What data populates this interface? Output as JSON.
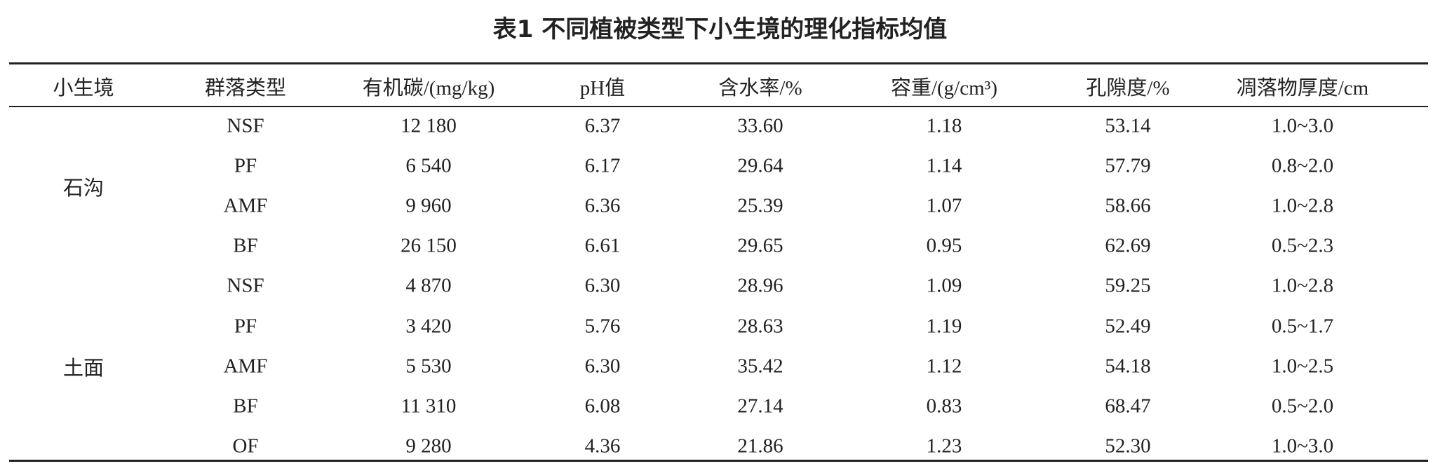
{
  "title": "表1 不同植被类型下小生境的理化指标均值",
  "table": {
    "headers": [
      "小生境",
      "群落类型",
      "有机碳/(mg/kg)",
      "pH值",
      "含水率/%",
      "容重/(g/cm³)",
      "孔隙度/%",
      "凋落物厚度/cm"
    ],
    "groups": [
      {
        "label": "石沟",
        "rows": [
          [
            "NSF",
            "12 180",
            "6.37",
            "33.60",
            "1.18",
            "53.14",
            "1.0~3.0"
          ],
          [
            "PF",
            "6 540",
            "6.17",
            "29.64",
            "1.14",
            "57.79",
            "0.8~2.0"
          ],
          [
            "AMF",
            "9 960",
            "6.36",
            "25.39",
            "1.07",
            "58.66",
            "1.0~2.8"
          ],
          [
            "BF",
            "26 150",
            "6.61",
            "29.65",
            "0.95",
            "62.69",
            "0.5~2.3"
          ]
        ]
      },
      {
        "label": "土面",
        "rows": [
          [
            "NSF",
            "4 870",
            "6.30",
            "28.96",
            "1.09",
            "59.25",
            "1.0~2.8"
          ],
          [
            "PF",
            "3 420",
            "5.76",
            "28.63",
            "1.19",
            "52.49",
            "0.5~1.7"
          ],
          [
            "AMF",
            "5 530",
            "6.30",
            "35.42",
            "1.12",
            "54.18",
            "1.0~2.5"
          ],
          [
            "BF",
            "11 310",
            "6.08",
            "27.14",
            "0.83",
            "68.47",
            "0.5~2.0"
          ],
          [
            "OF",
            "9 280",
            "4.36",
            "21.86",
            "1.23",
            "52.30",
            "1.0~3.0"
          ]
        ]
      }
    ]
  }
}
